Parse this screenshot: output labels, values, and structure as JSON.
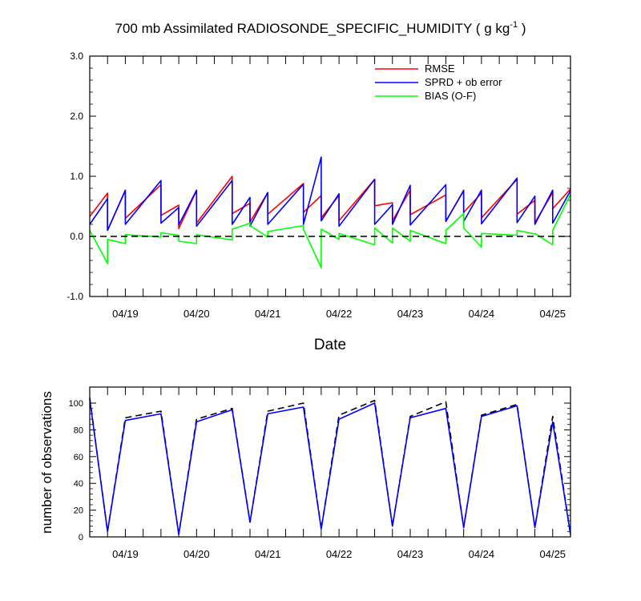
{
  "chart_data": [
    {
      "type": "line",
      "title": "700 mb Assimilated RADIOSONDE_SPECIFIC_HUMIDITY ( g kg",
      "title_sup": "-1",
      "title_end": " )",
      "xlabel": "Date",
      "ylabel": "",
      "xlim": [
        0,
        13.5
      ],
      "ylim": [
        -1.0,
        3.0
      ],
      "yticks": [
        -1.0,
        0.0,
        1.0,
        2.0,
        3.0
      ],
      "ytick_labels": [
        "-1.0",
        "0.0",
        "1.0",
        "2.0",
        "3.0"
      ],
      "xtick_positions": [
        1,
        3,
        5,
        7,
        9,
        11,
        13
      ],
      "xtick_labels": [
        "04/19",
        "04/20",
        "04/21",
        "04/22",
        "04/23",
        "04/24",
        "04/25"
      ],
      "legend": [
        "RMSE",
        "SPRD + ob error",
        "BIAS (O-F)"
      ],
      "legend_position": "top-right",
      "series": [
        {
          "name": "RMSE",
          "color": "#ff0000",
          "x": [
            0.0,
            0.5,
            0.5,
            1.0,
            1.0,
            2.0,
            2.0,
            2.5,
            2.5,
            3.0,
            3.0,
            4.0,
            4.0,
            4.5,
            4.5,
            5.0,
            5.0,
            6.0,
            6.0,
            6.5,
            6.5,
            7.0,
            7.0,
            8.0,
            8.0,
            8.5,
            8.5,
            9.0,
            9.0,
            10.0,
            10.0,
            10.5,
            10.5,
            11.0,
            11.0,
            12.0,
            12.0,
            12.5,
            12.5,
            13.0,
            13.0,
            13.5
          ],
          "y": [
            0.33,
            0.72,
            0.1,
            0.76,
            0.3,
            0.86,
            0.35,
            0.52,
            0.13,
            0.76,
            0.22,
            1.0,
            0.38,
            0.55,
            0.24,
            0.73,
            0.37,
            0.88,
            0.4,
            0.68,
            0.31,
            0.68,
            0.26,
            0.95,
            0.51,
            0.56,
            0.26,
            0.77,
            0.36,
            0.69,
            0.25,
            0.77,
            0.4,
            0.72,
            0.31,
            0.95,
            0.37,
            0.6,
            0.23,
            0.73,
            0.46,
            0.79
          ]
        },
        {
          "name": "SPRD + ob error",
          "color": "#0000ff",
          "x": [
            0.0,
            0.5,
            0.5,
            1.0,
            1.0,
            2.0,
            2.0,
            2.5,
            2.5,
            3.0,
            3.0,
            4.0,
            4.0,
            4.5,
            4.5,
            5.0,
            5.0,
            6.0,
            6.0,
            6.5,
            6.5,
            7.0,
            7.0,
            8.0,
            8.0,
            8.5,
            8.5,
            9.0,
            9.0,
            10.0,
            10.0,
            10.5,
            10.5,
            11.0,
            11.0,
            12.0,
            12.0,
            12.5,
            12.5,
            13.0,
            13.0,
            13.5
          ],
          "y": [
            0.2,
            0.63,
            0.1,
            0.77,
            0.2,
            0.93,
            0.22,
            0.48,
            0.19,
            0.77,
            0.17,
            0.93,
            0.2,
            0.65,
            0.17,
            0.73,
            0.2,
            0.87,
            0.2,
            1.32,
            0.26,
            0.71,
            0.17,
            0.95,
            0.2,
            0.53,
            0.2,
            0.85,
            0.19,
            0.86,
            0.25,
            0.76,
            0.25,
            0.77,
            0.21,
            0.97,
            0.23,
            0.67,
            0.2,
            0.77,
            0.22,
            0.76
          ]
        },
        {
          "name": "BIAS (O-F)",
          "color": "#00ff00",
          "x": [
            0.0,
            0.5,
            0.5,
            1.0,
            1.0,
            2.0,
            2.0,
            2.5,
            2.5,
            3.0,
            3.0,
            4.0,
            4.0,
            4.5,
            4.5,
            5.0,
            5.0,
            6.0,
            6.0,
            6.5,
            6.5,
            7.0,
            7.0,
            8.0,
            8.0,
            8.5,
            8.5,
            9.0,
            9.0,
            10.0,
            10.0,
            10.5,
            10.5,
            11.0,
            11.0,
            12.0,
            12.0,
            12.5,
            12.5,
            13.0,
            13.0,
            13.5
          ],
          "y": [
            0.1,
            -0.45,
            -0.05,
            -0.12,
            0.03,
            -0.01,
            0.06,
            0.02,
            -0.08,
            -0.12,
            0.03,
            -0.06,
            0.12,
            0.22,
            0.18,
            -0.01,
            0.08,
            0.18,
            0.12,
            -0.52,
            0.12,
            -0.05,
            0.05,
            -0.14,
            0.14,
            -0.11,
            0.14,
            -0.08,
            0.1,
            -0.12,
            0.1,
            0.38,
            0.14,
            -0.18,
            0.05,
            0.02,
            0.1,
            0.04,
            0.05,
            -0.14,
            0.1,
            0.7
          ]
        },
        {
          "name": "zero line",
          "color": "#000000",
          "dashed": true,
          "x": [
            0.0,
            13.5
          ],
          "y": [
            0.0,
            0.0
          ]
        }
      ]
    },
    {
      "type": "line",
      "title": "",
      "xlabel": "",
      "ylabel": "number of observations",
      "xlim": [
        0,
        13.5
      ],
      "ylim": [
        0,
        112
      ],
      "yticks": [
        0,
        20,
        40,
        60,
        80,
        100
      ],
      "ytick_labels": [
        "0",
        "20",
        "40",
        "60",
        "80",
        "100"
      ],
      "xtick_positions": [
        1,
        3,
        5,
        7,
        9,
        11,
        13
      ],
      "xtick_labels": [
        "04/19",
        "04/20",
        "04/21",
        "04/22",
        "04/23",
        "04/24",
        "04/25"
      ],
      "series": [
        {
          "name": "possible observations",
          "color": "#000000",
          "dashed": true,
          "x": [
            0.0,
            0.5,
            1.0,
            2.0,
            2.5,
            3.0,
            4.0,
            4.5,
            5.0,
            6.0,
            6.5,
            7.0,
            8.0,
            8.5,
            9.0,
            10.0,
            10.5,
            11.0,
            12.0,
            12.5,
            13.0,
            13.5
          ],
          "y": [
            104,
            4,
            89,
            94,
            2,
            88,
            96,
            11,
            94,
            100,
            6,
            91,
            102,
            8,
            90,
            101,
            7,
            91,
            99,
            7,
            90,
            2
          ]
        },
        {
          "name": "assimilated observations",
          "color": "#0000ff",
          "x": [
            0.0,
            0.5,
            1.0,
            2.0,
            2.5,
            3.0,
            4.0,
            4.5,
            5.0,
            6.0,
            6.5,
            7.0,
            8.0,
            8.5,
            9.0,
            10.0,
            10.5,
            11.0,
            12.0,
            12.5,
            13.0,
            13.5
          ],
          "y": [
            103,
            4,
            87,
            92,
            2,
            86,
            95,
            11,
            92,
            97,
            6,
            88,
            100,
            8,
            89,
            96,
            7,
            90,
            98,
            7,
            86,
            2
          ]
        }
      ]
    }
  ]
}
